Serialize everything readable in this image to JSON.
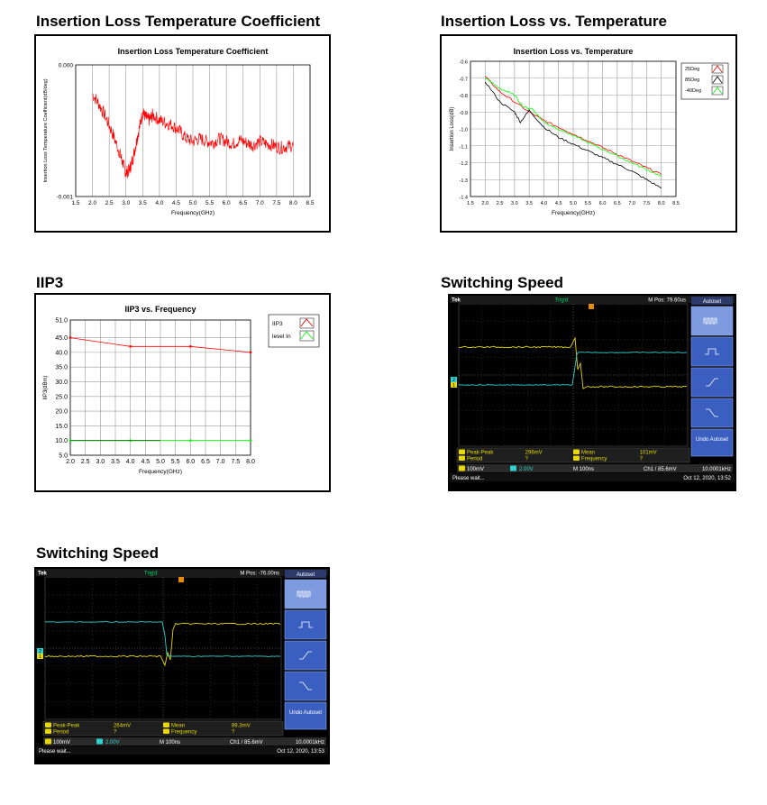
{
  "sections": {
    "s1": "Insertion Loss Temperature Coefficient",
    "s2": "Insertion Loss vs. Temperature",
    "s3": "IIP3",
    "s4": "Switching Speed",
    "s5": "Switching Speed"
  },
  "chart_data": [
    {
      "type": "line",
      "title": "Insertion Loss Temperature Coefficient",
      "xlabel": "Frequency(GHz)",
      "ylabel": "Insertion Loss Temperature Coefficient(dB/deg)",
      "xlim": [
        1.5,
        8.5
      ],
      "ylim": [
        -0.001,
        0.0
      ],
      "xticks": [
        "1.5",
        "2.0",
        "2.5",
        "3.0",
        "3.5",
        "4.0",
        "4.5",
        "5.0",
        "5.5",
        "6.0",
        "6.5",
        "7.0",
        "7.5",
        "8.0",
        "8.5"
      ],
      "yticks": [
        "0.000",
        "-0.001"
      ],
      "color": "#ff0000",
      "series": [
        {
          "x": [
            2.0,
            2.2,
            2.4,
            2.6,
            2.8,
            2.9,
            3.0,
            3.1,
            3.2,
            3.3,
            3.4,
            3.5,
            3.6,
            3.7,
            3.8,
            4.0,
            4.2,
            4.4,
            4.6,
            4.8,
            5.0,
            5.2,
            5.4,
            5.6,
            5.8,
            6.0,
            6.2,
            6.4,
            6.6,
            6.8,
            7.0,
            7.2,
            7.4,
            7.6,
            7.8,
            8.0
          ],
          "y": [
            -0.00022,
            -0.0003,
            -0.0004,
            -0.00052,
            -0.00066,
            -0.00074,
            -0.00082,
            -0.0008,
            -0.00072,
            -0.0006,
            -0.00048,
            -0.00036,
            -0.0004,
            -0.00042,
            -0.00038,
            -0.00042,
            -0.00044,
            -0.00046,
            -0.0005,
            -0.00056,
            -0.00058,
            -0.00056,
            -0.00058,
            -0.00059,
            -0.00056,
            -0.00058,
            -0.0006,
            -0.00057,
            -0.00059,
            -0.00061,
            -0.00058,
            -0.0006,
            -0.00061,
            -0.00063,
            -0.00062,
            -0.00061
          ]
        }
      ]
    },
    {
      "type": "line",
      "title": "Insertion Loss vs. Temperature",
      "xlabel": "Frequency(GHz)",
      "ylabel": "Insertion Loss(dB)",
      "xlim": [
        1.5,
        8.5
      ],
      "ylim": [
        -1.4,
        -0.6
      ],
      "xticks": [
        "1.5",
        "2.0",
        "2.5",
        "3.0",
        "3.5",
        "4.0",
        "4.5",
        "5.0",
        "5.5",
        "6.0",
        "6.5",
        "7.0",
        "7.5",
        "8.0",
        "8.5"
      ],
      "yticks": [
        "-0.6",
        "-0.7",
        "-0.8",
        "-0.9",
        "-1.0",
        "-1.1",
        "-1.2",
        "-1.3",
        "-1.4"
      ],
      "legend": "top-right",
      "series": [
        {
          "name": "25Deg",
          "color": "#ff0000",
          "x": [
            2.0,
            2.5,
            3.0,
            3.5,
            4.0,
            4.5,
            5.0,
            5.5,
            6.0,
            6.5,
            7.0,
            7.5,
            8.0
          ],
          "y": [
            -0.69,
            -0.78,
            -0.84,
            -0.9,
            -0.95,
            -0.99,
            -1.03,
            -1.07,
            -1.11,
            -1.15,
            -1.19,
            -1.23,
            -1.27
          ]
        },
        {
          "name": "85Deg",
          "color": "#000000",
          "x": [
            2.0,
            2.5,
            3.0,
            3.2,
            3.5,
            4.0,
            4.5,
            5.0,
            5.5,
            6.0,
            6.5,
            7.0,
            7.5,
            8.0
          ],
          "y": [
            -0.72,
            -0.84,
            -0.9,
            -0.96,
            -0.89,
            -0.99,
            -1.05,
            -1.09,
            -1.13,
            -1.17,
            -1.21,
            -1.25,
            -1.3,
            -1.35
          ]
        },
        {
          "name": "-40Deg",
          "color": "#00ff00",
          "x": [
            2.0,
            2.5,
            3.0,
            3.3,
            3.6,
            4.0,
            4.5,
            5.0,
            5.5,
            6.0,
            6.5,
            7.0,
            7.5,
            8.0
          ],
          "y": [
            -0.7,
            -0.76,
            -0.8,
            -0.87,
            -0.88,
            -0.96,
            -1.0,
            -1.04,
            -1.08,
            -1.12,
            -1.16,
            -1.2,
            -1.24,
            -1.28
          ]
        }
      ]
    },
    {
      "type": "line",
      "title": "IIP3 vs. Frequency",
      "xlabel": "Frequency(GHz)",
      "ylabel": "IIP3(dBm)",
      "xlim": [
        2.0,
        8.0
      ],
      "ylim": [
        5.0,
        51.0
      ],
      "xticks": [
        "2.0",
        "2.5",
        "3.0",
        "3.5",
        "4.0",
        "4.5",
        "5.0",
        "5.5",
        "6.0",
        "6.5",
        "7.0",
        "7.5",
        "8.0"
      ],
      "yticks": [
        "51.0",
        "45.0",
        "40.0",
        "35.0",
        "30.0",
        "25.0",
        "20.0",
        "15.0",
        "10.0",
        "5.0"
      ],
      "legend": "top-right",
      "series": [
        {
          "name": "IIP3",
          "color": "#ff0000",
          "x": [
            2.0,
            4.0,
            6.0,
            8.0
          ],
          "y": [
            45.0,
            42.0,
            42.0,
            40.0
          ]
        },
        {
          "name": "level In",
          "color": "#00ff00",
          "x": [
            2.0,
            4.0,
            6.0,
            8.0
          ],
          "y": [
            10.0,
            10.0,
            10.0,
            10.0
          ]
        }
      ]
    }
  ],
  "scope1": {
    "brand": "Tek",
    "trig_label": "Trig'd",
    "mpos": "M Pos: 79.60us",
    "menu_title": "Autoset",
    "undo_label": "Undo Autoset",
    "meas": [
      {
        "label": "Peak-Peak",
        "value": "296mV"
      },
      {
        "label": "Period",
        "value": "?"
      },
      {
        "label": "Mean",
        "value": "101mV"
      },
      {
        "label": "Frequency",
        "value": "?"
      }
    ],
    "ch1_scale": "100mV",
    "ch2_scale": "2.00V",
    "timebase": "M 100ns",
    "trigger": "Ch1 / 85.6mV",
    "freq": "10.0001kHz",
    "status": "Please wait...",
    "date": "Oct 12, 2020, 13:52",
    "ch_labels": [
      "1",
      "2"
    ]
  },
  "scope2": {
    "brand": "Tek",
    "trig_label": "Trig'd",
    "mpos": "M Pos: -76.00ns",
    "menu_title": "Autoset",
    "undo_label": "Undo Autoset",
    "meas": [
      {
        "label": "Peak-Peak",
        "value": "264mV"
      },
      {
        "label": "Period",
        "value": "?"
      },
      {
        "label": "Mean",
        "value": "89.3mV"
      },
      {
        "label": "Frequency",
        "value": "?"
      }
    ],
    "ch1_scale": "100mV",
    "ch2_scale": "2.00V",
    "timebase": "M 100ns",
    "trigger": "Ch1 / 85.6mV",
    "freq": "10.0001kHz",
    "status": "Please wait...",
    "date": "Oct 12, 2020, 13:53",
    "ch_labels": [
      "1",
      "2"
    ]
  },
  "colors": {
    "scope_yellow": "#e6d800",
    "scope_cyan": "#2fd0d0",
    "scope_menu": "#3a5fc0"
  }
}
